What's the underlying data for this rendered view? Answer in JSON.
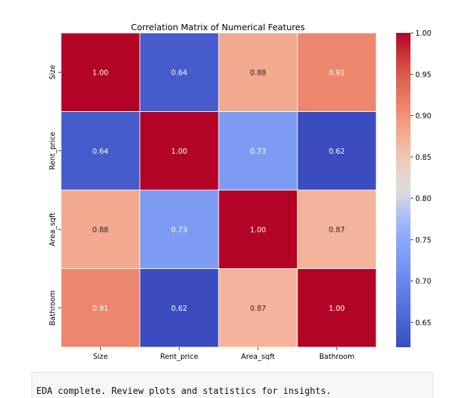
{
  "chart_data": {
    "type": "heatmap",
    "title": "Correlation Matrix of Numerical Features",
    "x_labels": [
      "Size",
      "Rent_price",
      "Area_sqft",
      "Bathroom"
    ],
    "y_labels": [
      "Size",
      "Rent_price",
      "Area_sqft",
      "Bathroom"
    ],
    "values": [
      [
        1.0,
        0.64,
        0.88,
        0.91
      ],
      [
        0.64,
        1.0,
        0.73,
        0.62
      ],
      [
        0.88,
        0.73,
        1.0,
        0.87
      ],
      [
        0.91,
        0.62,
        0.87,
        1.0
      ]
    ],
    "annotation_format": "0.00",
    "colormap": "coolwarm",
    "colorbar": {
      "range": [
        0.62,
        1.0
      ],
      "ticks": [
        "1.00",
        "0.95",
        "0.90",
        "0.85",
        "0.80",
        "0.75",
        "0.70",
        "0.65"
      ],
      "tick_values": [
        1.0,
        0.95,
        0.9,
        0.85,
        0.8,
        0.75,
        0.7,
        0.65
      ]
    },
    "cell_border_color": "#ffffff"
  },
  "output": {
    "text": "EDA complete. Review plots and statistics for insights."
  }
}
